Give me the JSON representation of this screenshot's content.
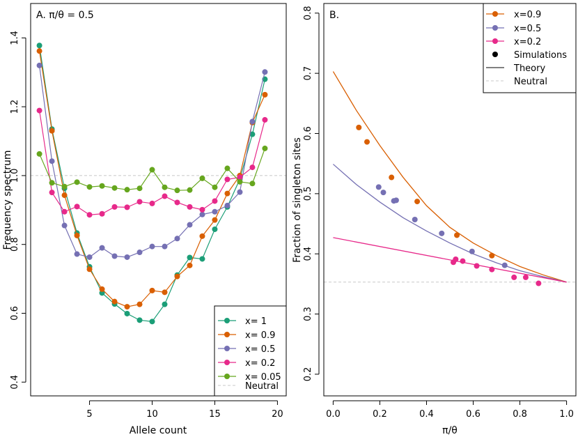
{
  "chart_data": [
    {
      "type": "line",
      "title": "A. π/θ = 0.5",
      "xlabel": "Allele count",
      "ylabel": "Frequency spectrum",
      "xlim": [
        0.3,
        20.7
      ],
      "ylim": [
        0.36,
        1.5
      ],
      "xticks": [
        5,
        10,
        15,
        20
      ],
      "xtick_labels": [
        "5",
        "10",
        "15",
        "20"
      ],
      "yticks": [
        0.4,
        0.6,
        0.8,
        1.0,
        1.2,
        1.4
      ],
      "ytick_labels": [
        "0.4",
        "0.6",
        "0.8",
        "1.0",
        "1.2",
        "1.4"
      ],
      "x": [
        1,
        2,
        3,
        4,
        5,
        6,
        7,
        8,
        9,
        10,
        11,
        12,
        13,
        14,
        15,
        16,
        17,
        18,
        19
      ],
      "neutral_value": 1.0,
      "legend_position": "bottom-right",
      "series": [
        {
          "name": "x= 1",
          "color": "#1b9e77",
          "values": [
            1.378,
            1.135,
            0.963,
            0.833,
            0.735,
            0.659,
            0.627,
            0.599,
            0.58,
            0.576,
            0.626,
            0.711,
            0.762,
            0.758,
            0.844,
            0.909,
            0.99,
            1.12,
            1.28
          ]
        },
        {
          "name": "x= 0.9",
          "color": "#d95f02",
          "values": [
            1.362,
            1.13,
            0.943,
            0.826,
            0.728,
            0.67,
            0.634,
            0.619,
            0.626,
            0.666,
            0.661,
            0.707,
            0.739,
            0.824,
            0.871,
            0.948,
            1.0,
            1.154,
            1.235
          ]
        },
        {
          "name": "x= 0.5",
          "color": "#7570b3",
          "values": [
            1.32,
            1.042,
            0.855,
            0.772,
            0.763,
            0.79,
            0.766,
            0.763,
            0.777,
            0.794,
            0.794,
            0.817,
            0.857,
            0.887,
            0.895,
            0.913,
            0.952,
            1.157,
            1.301
          ]
        },
        {
          "name": "x= 0.2",
          "color": "#e7298a",
          "values": [
            1.189,
            0.951,
            0.895,
            0.91,
            0.886,
            0.889,
            0.909,
            0.908,
            0.924,
            0.919,
            0.94,
            0.922,
            0.909,
            0.901,
            0.926,
            0.989,
            0.995,
            1.024,
            1.162
          ]
        },
        {
          "name": "x= 0.05",
          "color": "#66a61e",
          "values": [
            1.063,
            0.979,
            0.968,
            0.981,
            0.967,
            0.97,
            0.964,
            0.959,
            0.963,
            1.017,
            0.966,
            0.957,
            0.958,
            0.992,
            0.966,
            1.021,
            0.982,
            0.977,
            1.079
          ]
        }
      ],
      "legend_neutral_label": "Neutral"
    },
    {
      "type": "scatter",
      "title": "B.",
      "xlabel": "π/θ",
      "ylabel": "Fraction of singleton sites",
      "xlim": [
        -0.04,
        1.04
      ],
      "ylim": [
        0.164,
        0.816
      ],
      "xticks": [
        0.0,
        0.2,
        0.4,
        0.6,
        0.8,
        1.0
      ],
      "xtick_labels": [
        "0.0",
        "0.2",
        "0.4",
        "0.6",
        "0.8",
        "1.0"
      ],
      "yticks": [
        0.2,
        0.3,
        0.4,
        0.5,
        0.6,
        0.7,
        0.8
      ],
      "ytick_labels": [
        "0.2",
        "0.3",
        "0.4",
        "0.5",
        "0.6",
        "0.7",
        "0.8"
      ],
      "neutral_value": 0.353,
      "legend_position": "top-right",
      "series": [
        {
          "name": "x=0.9",
          "color": "#d95f02",
          "points": [
            [
              0.11,
              0.61
            ],
            [
              0.145,
              0.586
            ],
            [
              0.25,
              0.527
            ],
            [
              0.36,
              0.487
            ],
            [
              0.53,
              0.431
            ],
            [
              0.68,
              0.397
            ]
          ],
          "theory": [
            [
              0.0,
              0.703
            ],
            [
              0.1,
              0.638
            ],
            [
              0.2,
              0.58
            ],
            [
              0.3,
              0.527
            ],
            [
              0.4,
              0.48
            ],
            [
              0.5,
              0.444
            ],
            [
              0.6,
              0.418
            ],
            [
              0.7,
              0.397
            ],
            [
              0.8,
              0.379
            ],
            [
              0.9,
              0.365
            ],
            [
              1.0,
              0.353
            ]
          ]
        },
        {
          "name": "x=0.5",
          "color": "#7570b3",
          "points": [
            [
              0.195,
              0.511
            ],
            [
              0.215,
              0.502
            ],
            [
              0.26,
              0.488
            ],
            [
              0.27,
              0.489
            ],
            [
              0.35,
              0.457
            ],
            [
              0.465,
              0.434
            ],
            [
              0.595,
              0.404
            ],
            [
              0.735,
              0.381
            ]
          ],
          "theory": [
            [
              0.0,
              0.549
            ],
            [
              0.1,
              0.515
            ],
            [
              0.2,
              0.486
            ],
            [
              0.3,
              0.46
            ],
            [
              0.4,
              0.438
            ],
            [
              0.5,
              0.418
            ],
            [
              0.6,
              0.4
            ],
            [
              0.7,
              0.385
            ],
            [
              0.8,
              0.372
            ],
            [
              0.9,
              0.362
            ],
            [
              1.0,
              0.353
            ]
          ]
        },
        {
          "name": "x=0.2",
          "color": "#e7298a",
          "points": [
            [
              0.515,
              0.386
            ],
            [
              0.525,
              0.391
            ],
            [
              0.555,
              0.388
            ],
            [
              0.615,
              0.38
            ],
            [
              0.68,
              0.374
            ],
            [
              0.775,
              0.361
            ],
            [
              0.825,
              0.361
            ],
            [
              0.88,
              0.351
            ]
          ],
          "theory": [
            [
              0.0,
              0.427
            ],
            [
              1.0,
              0.353
            ]
          ]
        }
      ],
      "legend_simulations_label": "Simulations",
      "legend_theory_label": "Theory",
      "legend_neutral_label": "Neutral"
    }
  ]
}
